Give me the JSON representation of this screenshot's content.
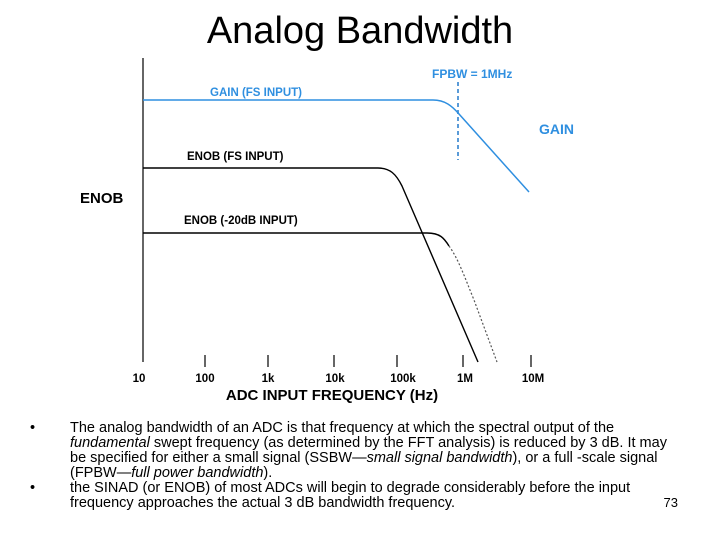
{
  "slide": {
    "title": "Analog Bandwidth",
    "page_number": "73"
  },
  "diagram": {
    "labels": {
      "fpbw": "FPBW = 1MHz",
      "gain_fs": "GAIN (FS INPUT)",
      "gain": "GAIN",
      "enob_fs": "ENOB (FS INPUT)",
      "enob_axis": "ENOB",
      "enob_20db": "ENOB (-20dB INPUT)",
      "x_axis": "ADC INPUT FREQUENCY (Hz)"
    },
    "x_ticks": [
      "10",
      "100",
      "1k",
      "10k",
      "100k",
      "1M",
      "10M"
    ],
    "colors": {
      "gain": "#2f8fe0",
      "enob": "#000000"
    }
  },
  "bullets": {
    "bullet1_text1": "The analog bandwidth of an ADC is that frequency at which the spectral output of the ",
    "bullet1_italic1": "fundamental",
    "bullet1_text2": " swept frequency (as determined by the FFT analysis) is reduced by 3 dB. It may be specified for either a small signal (SSBW—",
    "bullet1_italic2": "small signal bandwidth",
    "bullet1_text3": "), or a full -scale signal (FPBW—",
    "bullet1_italic3": "full power bandwidth",
    "bullet1_text4": ").",
    "bullet2_text": "the SINAD (or ENOB) of most ADCs will begin to degrade considerably before the input frequency approaches the actual 3 dB bandwidth frequency.",
    "bullet_symbol": "•"
  }
}
